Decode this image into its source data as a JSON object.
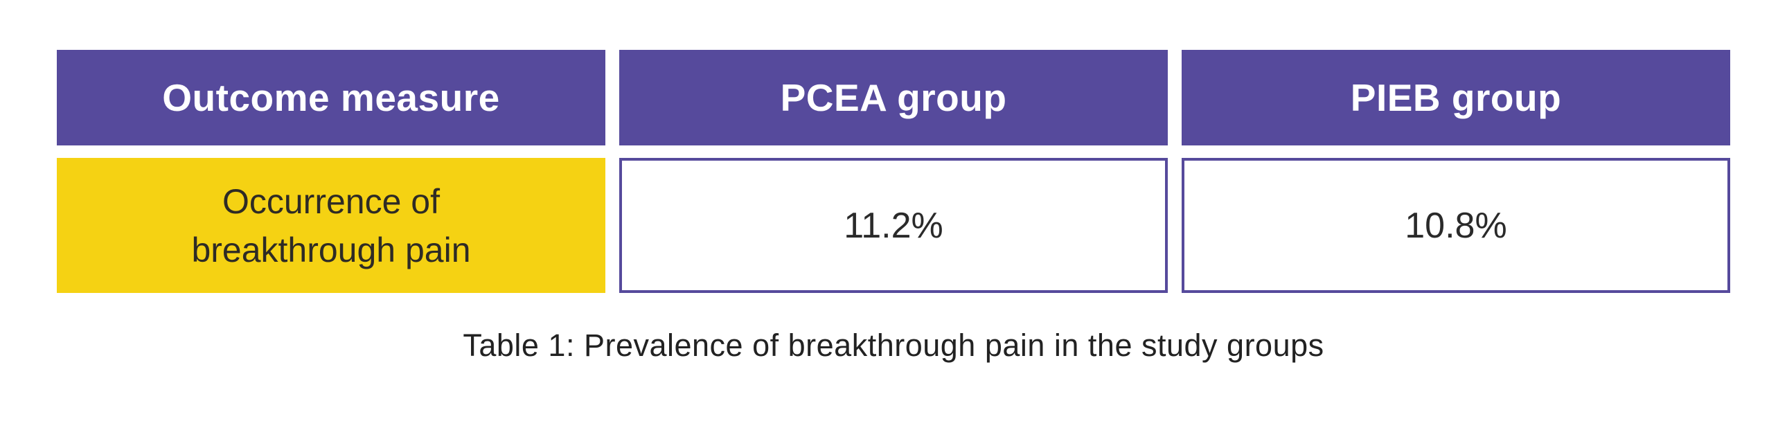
{
  "table": {
    "headers": [
      "Outcome measure",
      "PCEA group",
      "PIEB group"
    ],
    "rows": [
      {
        "label": "Occurrence of breakthrough pain",
        "values": [
          "11.2%",
          "10.8%"
        ]
      }
    ]
  },
  "caption": "Table 1: Prevalence of breakthrough pain in the study groups",
  "colors": {
    "header_bg": "#564a9c",
    "header_text": "#ffffff",
    "row_label_bg": "#f5d213",
    "row_label_text": "#2e2b25",
    "value_cell_bg": "#ffffff",
    "value_cell_border": "#564a9c",
    "value_text": "#2a2a2a",
    "caption_text": "#222222",
    "page_bg": "#ffffff"
  },
  "chart_data": {
    "type": "table",
    "title": "Table 1: Prevalence of breakthrough pain in the study groups",
    "columns": [
      "Outcome measure",
      "PCEA group",
      "PIEB group"
    ],
    "rows": [
      [
        "Occurrence of breakthrough pain",
        "11.2%",
        "10.8%"
      ]
    ],
    "series": [
      {
        "name": "PCEA group",
        "values": [
          11.2
        ]
      },
      {
        "name": "PIEB group",
        "values": [
          10.8
        ]
      }
    ],
    "categories": [
      "Occurrence of breakthrough pain"
    ],
    "unit": "%",
    "legend_position": "none",
    "grid": false
  }
}
